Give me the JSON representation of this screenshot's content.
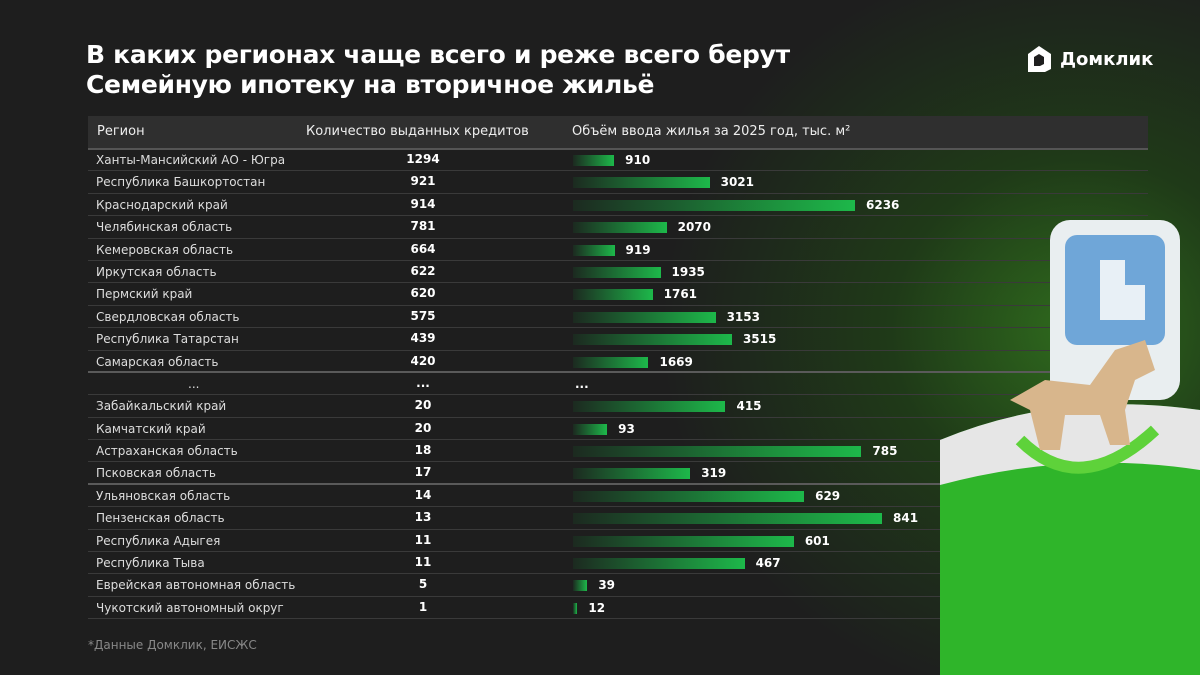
{
  "title_line1": "В каких регионах чаще всего и реже всего берут",
  "title_line2": "Семейную ипотеку на вторичное жильё",
  "logo": "Домклик",
  "footnote": "*Данные Домклик, ЕИСЖС",
  "colors": {
    "bar": "#1db84a",
    "background": "#1e1e1e"
  },
  "chart_data": {
    "type": "table",
    "columns": [
      "Регион",
      "Количество выданных кредитов",
      "Объём ввода жилья за 2025 год, тыс. м²"
    ],
    "groups": [
      {
        "rows": [
          {
            "region": "Ханты-Мансийский АО - Югра",
            "loans": "1294",
            "housing": 910
          },
          {
            "region": "Республика Башкортостан",
            "loans": "921",
            "housing": 3021
          },
          {
            "region": "Краснодарский край",
            "loans": "914",
            "housing": 6236
          },
          {
            "region": "Челябинская область",
            "loans": "781",
            "housing": 2070
          },
          {
            "region": "Кемеровская область",
            "loans": "664",
            "housing": 919
          },
          {
            "region": "Иркутская область",
            "loans": "622",
            "housing": 1935
          },
          {
            "region": "Пермский край",
            "loans": "620",
            "housing": 1761
          },
          {
            "region": "Свердловская область",
            "loans": "575",
            "housing": 3153
          },
          {
            "region": "Республика Татарстан",
            "loans": "439",
            "housing": 3515
          },
          {
            "region": "Самарская область",
            "loans": "420",
            "housing": 1669
          }
        ]
      },
      {
        "rows": [
          {
            "region": "Забайкальский край",
            "loans": "20",
            "housing": 415
          },
          {
            "region": "Камчатский край",
            "loans": "20",
            "housing": 93
          },
          {
            "region": "Астраханская область",
            "loans": "18",
            "housing": 785
          },
          {
            "region": "Псковская область",
            "loans": "17",
            "housing": 319
          },
          {
            "region": "Ульяновская область",
            "loans": "14",
            "housing": 629
          },
          {
            "region": "Пензенская область",
            "loans": "13",
            "housing": 841
          },
          {
            "region": "Республика Адыгея",
            "loans": "11",
            "housing": 601
          },
          {
            "region": "Республика Тыва",
            "loans": "11",
            "housing": 467
          },
          {
            "region": "Еврейская автономная область",
            "loans": "5",
            "housing": 39
          },
          {
            "region": "Чукотский автономный округ",
            "loans": "1",
            "housing": 12
          }
        ]
      }
    ],
    "ellipsis": {
      "region": "...",
      "loans": "...",
      "housing": "..."
    }
  }
}
